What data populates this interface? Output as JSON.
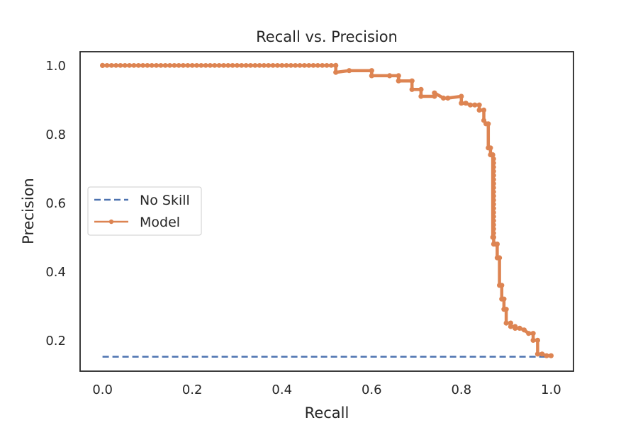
{
  "chart_data": {
    "type": "line",
    "title": "Recall vs. Precision",
    "xlabel": "Recall",
    "ylabel": "Precision",
    "xlim": [
      -0.05,
      1.05
    ],
    "ylim": [
      0.11,
      1.04
    ],
    "xticks": [
      0.0,
      0.2,
      0.4,
      0.6,
      0.8,
      1.0
    ],
    "xtick_labels": [
      "0.0",
      "0.2",
      "0.4",
      "0.6",
      "0.8",
      "1.0"
    ],
    "yticks": [
      0.2,
      0.4,
      0.6,
      0.8,
      1.0
    ],
    "ytick_labels": [
      "0.2",
      "0.4",
      "0.6",
      "0.8",
      "1.0"
    ],
    "grid": false,
    "legend_position": "center-left",
    "series": [
      {
        "name": "No Skill",
        "style": "dashed",
        "color": "#4c72b0",
        "x": [
          0.0,
          1.0
        ],
        "y": [
          0.152,
          0.152
        ]
      },
      {
        "name": "Model",
        "style": "solid-markers",
        "color": "#dd8452",
        "x": [
          0.0,
          0.52,
          0.52,
          0.55,
          0.6,
          0.6,
          0.64,
          0.66,
          0.66,
          0.69,
          0.69,
          0.71,
          0.71,
          0.74,
          0.74,
          0.76,
          0.77,
          0.8,
          0.8,
          0.81,
          0.82,
          0.83,
          0.84,
          0.84,
          0.85,
          0.85,
          0.855,
          0.86,
          0.86,
          0.865,
          0.865,
          0.87,
          0.87,
          0.872,
          0.872,
          0.875,
          0.88,
          0.88,
          0.885,
          0.885,
          0.89,
          0.89,
          0.895,
          0.895,
          0.9,
          0.9,
          0.91,
          0.91,
          0.92,
          0.92,
          0.93,
          0.94,
          0.95,
          0.96,
          0.96,
          0.97,
          0.97,
          0.98,
          0.99,
          1.0
        ],
        "y": [
          1.0,
          1.0,
          0.98,
          0.985,
          0.985,
          0.97,
          0.97,
          0.97,
          0.955,
          0.955,
          0.93,
          0.93,
          0.91,
          0.91,
          0.92,
          0.905,
          0.905,
          0.91,
          0.89,
          0.89,
          0.885,
          0.885,
          0.885,
          0.87,
          0.87,
          0.84,
          0.83,
          0.83,
          0.76,
          0.76,
          0.74,
          0.74,
          0.5,
          0.5,
          0.48,
          0.48,
          0.48,
          0.44,
          0.44,
          0.36,
          0.36,
          0.32,
          0.32,
          0.29,
          0.29,
          0.25,
          0.25,
          0.24,
          0.24,
          0.235,
          0.235,
          0.23,
          0.22,
          0.22,
          0.2,
          0.2,
          0.16,
          0.16,
          0.155,
          0.155
        ]
      }
    ]
  }
}
